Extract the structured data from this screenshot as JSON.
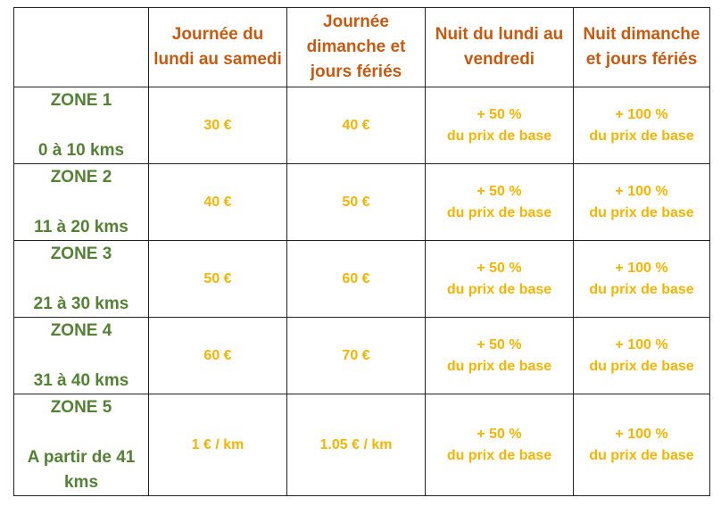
{
  "headers": [
    "Journée du lundi au samedi",
    "Journée dimanche et jours fériés",
    "Nuit du lundi au vendredi",
    "Nuit dimanche et jours fériés"
  ],
  "rows": [
    {
      "zone": "ZONE 1",
      "range": "0 à 10 kms",
      "day_weekday": "30 €",
      "day_sunday": "40 €",
      "night_weekday": [
        "+ 50 %",
        "du prix de base"
      ],
      "night_sunday": [
        "+ 100 %",
        "du prix de base"
      ]
    },
    {
      "zone": "ZONE 2",
      "range": "11 à 20 kms",
      "day_weekday": "40 €",
      "day_sunday": "50 €",
      "night_weekday": [
        "+ 50 %",
        "du prix de base"
      ],
      "night_sunday": [
        "+ 100 %",
        "du prix de base"
      ]
    },
    {
      "zone": "ZONE 3",
      "range": "21 à 30 kms",
      "day_weekday": "50 €",
      "day_sunday": "60 €",
      "night_weekday": [
        "+ 50 %",
        "du prix de base"
      ],
      "night_sunday": [
        "+ 100 %",
        "du prix de base"
      ]
    },
    {
      "zone": "ZONE 4",
      "range": "31 à 40 kms",
      "day_weekday": "60 €",
      "day_sunday": "70 €",
      "night_weekday": [
        "+ 50 %",
        "du prix de base"
      ],
      "night_sunday": [
        "+ 100 %",
        "du prix de base"
      ]
    },
    {
      "zone": "ZONE 5",
      "range": "A partir de 41 kms",
      "day_weekday": "1 € / km",
      "day_sunday": "1.05 € / km",
      "night_weekday": [
        "+ 50 %",
        "du prix de base"
      ],
      "night_sunday": [
        "+ 100 %",
        "du prix de base"
      ]
    }
  ],
  "colors": {
    "header": "#c55a11",
    "zone": "#548235",
    "price": "#f3b500",
    "border": "#222222"
  }
}
